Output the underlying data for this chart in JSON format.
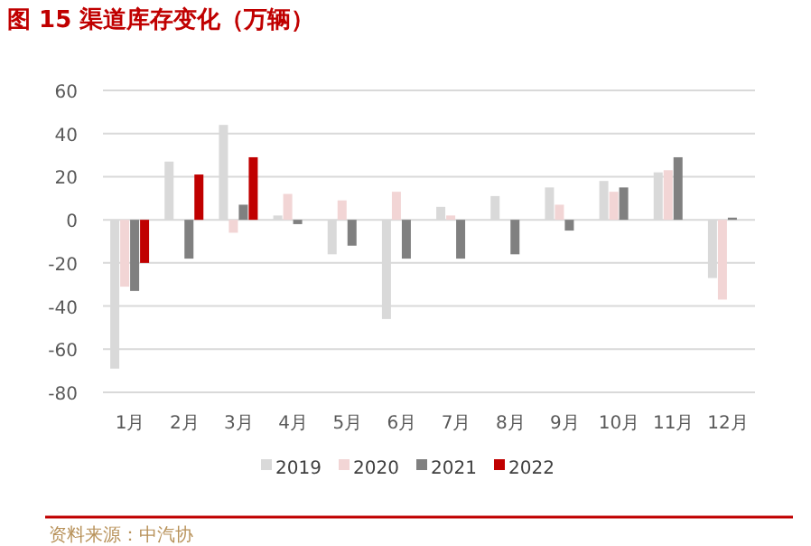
{
  "chart_data": {
    "type": "bar",
    "title": "图 15  渠道库存变化（万辆）",
    "categories": [
      "1月",
      "2月",
      "3月",
      "4月",
      "5月",
      "6月",
      "7月",
      "8月",
      "9月",
      "10月",
      "11月",
      "12月"
    ],
    "series": [
      {
        "name": "2019",
        "color": "#d9d9d9",
        "values": [
          -69,
          27,
          44,
          2,
          -16,
          -46,
          6,
          11,
          15,
          18,
          22,
          -27
        ]
      },
      {
        "name": "2020",
        "color": "#f2d5d5",
        "values": [
          -31,
          null,
          -6,
          12,
          9,
          13,
          2,
          null,
          7,
          13,
          23,
          -37
        ]
      },
      {
        "name": "2021",
        "color": "#808080",
        "values": [
          -33,
          -18,
          7,
          -2,
          -12,
          -18,
          -18,
          -16,
          -5,
          15,
          29,
          1
        ]
      },
      {
        "name": "2022",
        "color": "#c00000",
        "values": [
          -20,
          21,
          29,
          null,
          null,
          null,
          null,
          null,
          null,
          null,
          null,
          null
        ]
      }
    ],
    "ylim": [
      -80,
      60
    ],
    "yticks": [
      -80,
      -60,
      -40,
      -20,
      0,
      20,
      40,
      60
    ],
    "grid": "y",
    "legend": "bottom",
    "annotations": [
      "资料来源：中汽协"
    ]
  }
}
